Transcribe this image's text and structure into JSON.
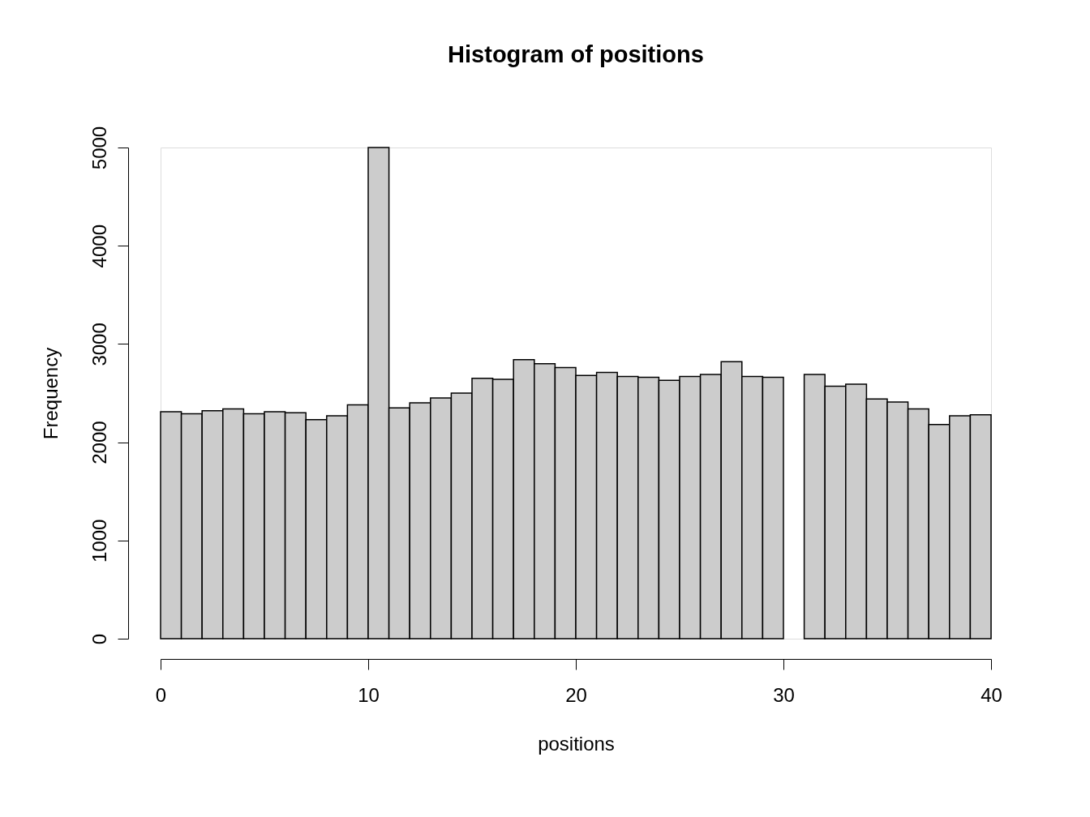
{
  "chart_data": {
    "type": "histogram",
    "title": "Histogram of positions",
    "xlabel": "positions",
    "ylabel": "Frequency",
    "bins": [
      0,
      1,
      2,
      3,
      4,
      5,
      6,
      7,
      8,
      9,
      10,
      11,
      12,
      13,
      14,
      15,
      16,
      17,
      18,
      19,
      20,
      21,
      22,
      23,
      24,
      25,
      26,
      27,
      28,
      29,
      30,
      31,
      32,
      33,
      34,
      35,
      36,
      37,
      38,
      39,
      40
    ],
    "values": [
      2310,
      2290,
      2320,
      2340,
      2290,
      2310,
      2300,
      2230,
      2270,
      2380,
      5000,
      2350,
      2400,
      2450,
      2500,
      2650,
      2640,
      2840,
      2800,
      2760,
      2680,
      2710,
      2670,
      2660,
      2630,
      2670,
      2690,
      2820,
      2670,
      2660,
      0,
      2690,
      2570,
      2590,
      2440,
      2410,
      2340,
      2180,
      2270,
      2280
    ],
    "color": "#cccccc",
    "xlim": [
      0,
      40
    ],
    "xticks": [
      0,
      10,
      20,
      30,
      40
    ],
    "ylim": [
      0,
      5000
    ],
    "yticks": [
      0,
      1000,
      2000,
      3000,
      4000,
      5000
    ],
    "grid": false
  }
}
